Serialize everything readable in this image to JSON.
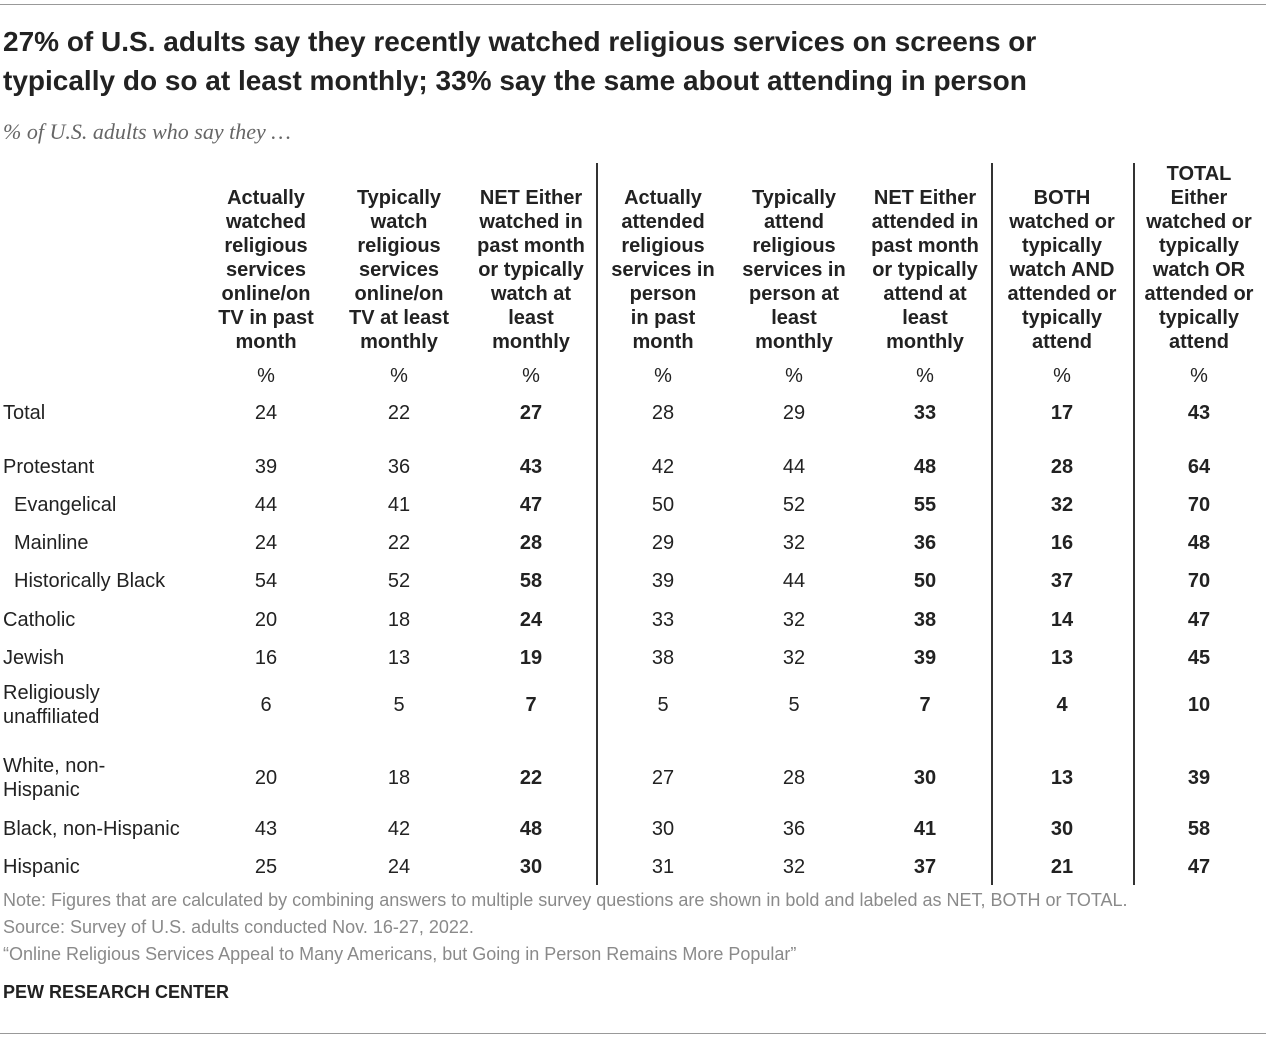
{
  "header": {
    "title": [
      "27% of U.S. adults say they recently watched religious services on screens or",
      "typically do so at least monthly; 33% say the same about attending in person"
    ],
    "subtitle": "% of U.S. adults who say they …"
  },
  "table": {
    "columns": [
      [
        "Actually",
        "watched",
        "religious",
        "services",
        "online/on",
        "TV in past",
        "month"
      ],
      [
        "Typically",
        "watch",
        "religious",
        "services",
        "online/on",
        "TV at least",
        "monthly"
      ],
      [
        "NET Either",
        "watched in",
        "past month",
        "or typically",
        "watch at",
        "least",
        "monthly"
      ],
      [
        "Actually",
        "attended",
        "religious",
        "services in",
        "person",
        "in past",
        "month"
      ],
      [
        "Typically",
        "attend",
        "religious",
        "services in",
        "person at",
        "least",
        "monthly"
      ],
      [
        "NET Either",
        "attended in",
        "past month",
        "or typically",
        "attend at",
        "least",
        "monthly"
      ],
      [
        "BOTH",
        "watched or",
        "typically",
        "watch AND",
        "attended or",
        "typically",
        "attend"
      ],
      [
        "TOTAL",
        "Either",
        "watched or",
        "typically",
        "watch OR",
        "attended or",
        "typically",
        "attend"
      ]
    ],
    "units": [
      "%",
      "%",
      "%",
      "%",
      "%",
      "%",
      "%",
      "%"
    ],
    "rows": [
      {
        "label": [
          "Total"
        ],
        "values": [
          24,
          22,
          27,
          28,
          29,
          33,
          17,
          43
        ]
      },
      {
        "label": [
          "Protestant"
        ],
        "values": [
          39,
          36,
          43,
          42,
          44,
          48,
          28,
          64
        ]
      },
      {
        "label": [
          "Evangelical"
        ],
        "values": [
          44,
          41,
          47,
          50,
          52,
          55,
          32,
          70
        ]
      },
      {
        "label": [
          "Mainline"
        ],
        "values": [
          24,
          22,
          28,
          29,
          32,
          36,
          16,
          48
        ]
      },
      {
        "label": [
          "Historically Black"
        ],
        "values": [
          54,
          52,
          58,
          39,
          44,
          50,
          37,
          70
        ]
      },
      {
        "label": [
          "Catholic"
        ],
        "values": [
          20,
          18,
          24,
          33,
          32,
          38,
          14,
          47
        ]
      },
      {
        "label": [
          "Jewish"
        ],
        "values": [
          16,
          13,
          19,
          38,
          32,
          39,
          13,
          45
        ]
      },
      {
        "label": [
          "Religiously",
          "unaffiliated"
        ],
        "values": [
          6,
          5,
          7,
          5,
          5,
          7,
          4,
          10
        ]
      },
      {
        "label": [
          "White, non-",
          "Hispanic"
        ],
        "values": [
          20,
          18,
          22,
          27,
          28,
          30,
          13,
          39
        ]
      },
      {
        "label": [
          "Black, non-Hispanic"
        ],
        "values": [
          43,
          42,
          48,
          30,
          36,
          41,
          30,
          58
        ]
      },
      {
        "label": [
          "Hispanic"
        ],
        "values": [
          25,
          24,
          30,
          31,
          32,
          37,
          21,
          47
        ]
      }
    ]
  },
  "footer": {
    "note": "Note: Figures that are calculated by combining answers to multiple survey questions are shown in bold and labeled as NET, BOTH or TOTAL.",
    "source": "Source: Survey of U.S. adults conducted Nov. 16-27, 2022.",
    "report": "“Online Religious Services Appeal to Many Americans, but Going in Person Remains More Popular”",
    "brand": "PEW RESEARCH CENTER"
  }
}
